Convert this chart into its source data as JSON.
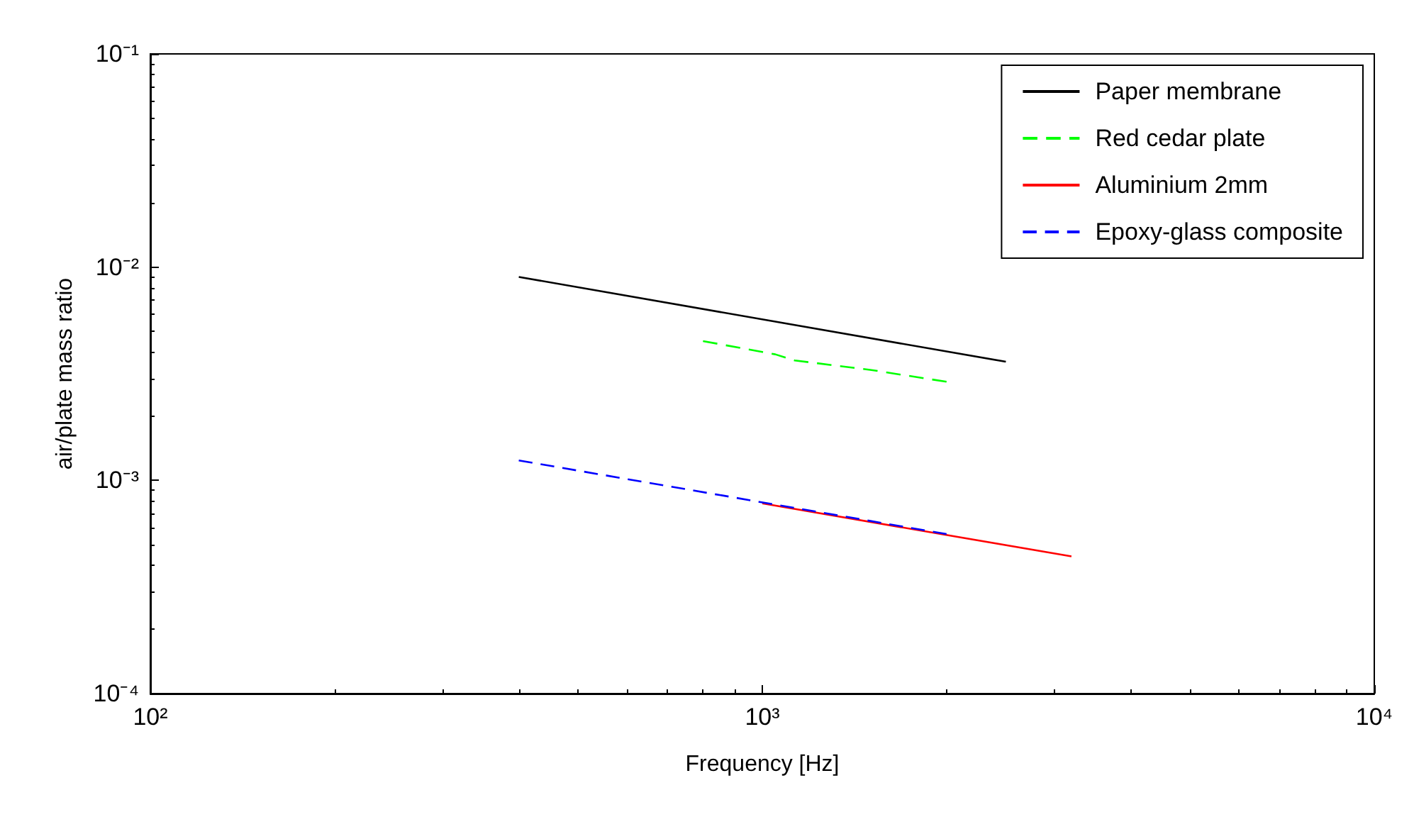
{
  "chart_data": {
    "type": "line",
    "xlabel": "Frequency [Hz]",
    "ylabel": "air/plate mass ratio",
    "log": "xy",
    "grid": false,
    "legend": "top right",
    "marker": "none",
    "xlim": [
      100,
      10000
    ],
    "xticks": [
      {
        "value": 100,
        "label": "10²"
      },
      {
        "value": 1000,
        "label": "10³"
      },
      {
        "value": 10000,
        "label": "10⁴"
      }
    ],
    "ylim": [
      0.0001,
      0.1
    ],
    "yticks": [
      {
        "value": 0.0001,
        "label": "10⁻⁴"
      },
      {
        "value": 0.001,
        "label": "10⁻³"
      },
      {
        "value": 0.01,
        "label": "10⁻²"
      },
      {
        "value": 0.1,
        "label": "10⁻¹"
      }
    ],
    "series": [
      {
        "name": "Paper membrane",
        "color": "#000000",
        "line_style": "solid",
        "x": [
          400,
          2500
        ],
        "values": [
          0.009,
          0.0036
        ]
      },
      {
        "name": "Red cedar plate",
        "color": "#00ff00",
        "line_style": "dashed",
        "x": [
          800,
          1000,
          1050,
          1130,
          1500,
          2000
        ],
        "values": [
          0.0045,
          0.004,
          0.0039,
          0.00365,
          0.0033,
          0.0029
        ]
      },
      {
        "name": "Aluminium 2mm",
        "color": "#ff0000",
        "line_style": "solid",
        "x": [
          1000,
          3200
        ],
        "values": [
          0.00078,
          0.00044
        ]
      },
      {
        "name": "Epoxy-glass composite",
        "color": "#0000ff",
        "line_style": "dashed",
        "x": [
          400,
          2000
        ],
        "values": [
          0.00124,
          0.00056
        ]
      }
    ]
  }
}
